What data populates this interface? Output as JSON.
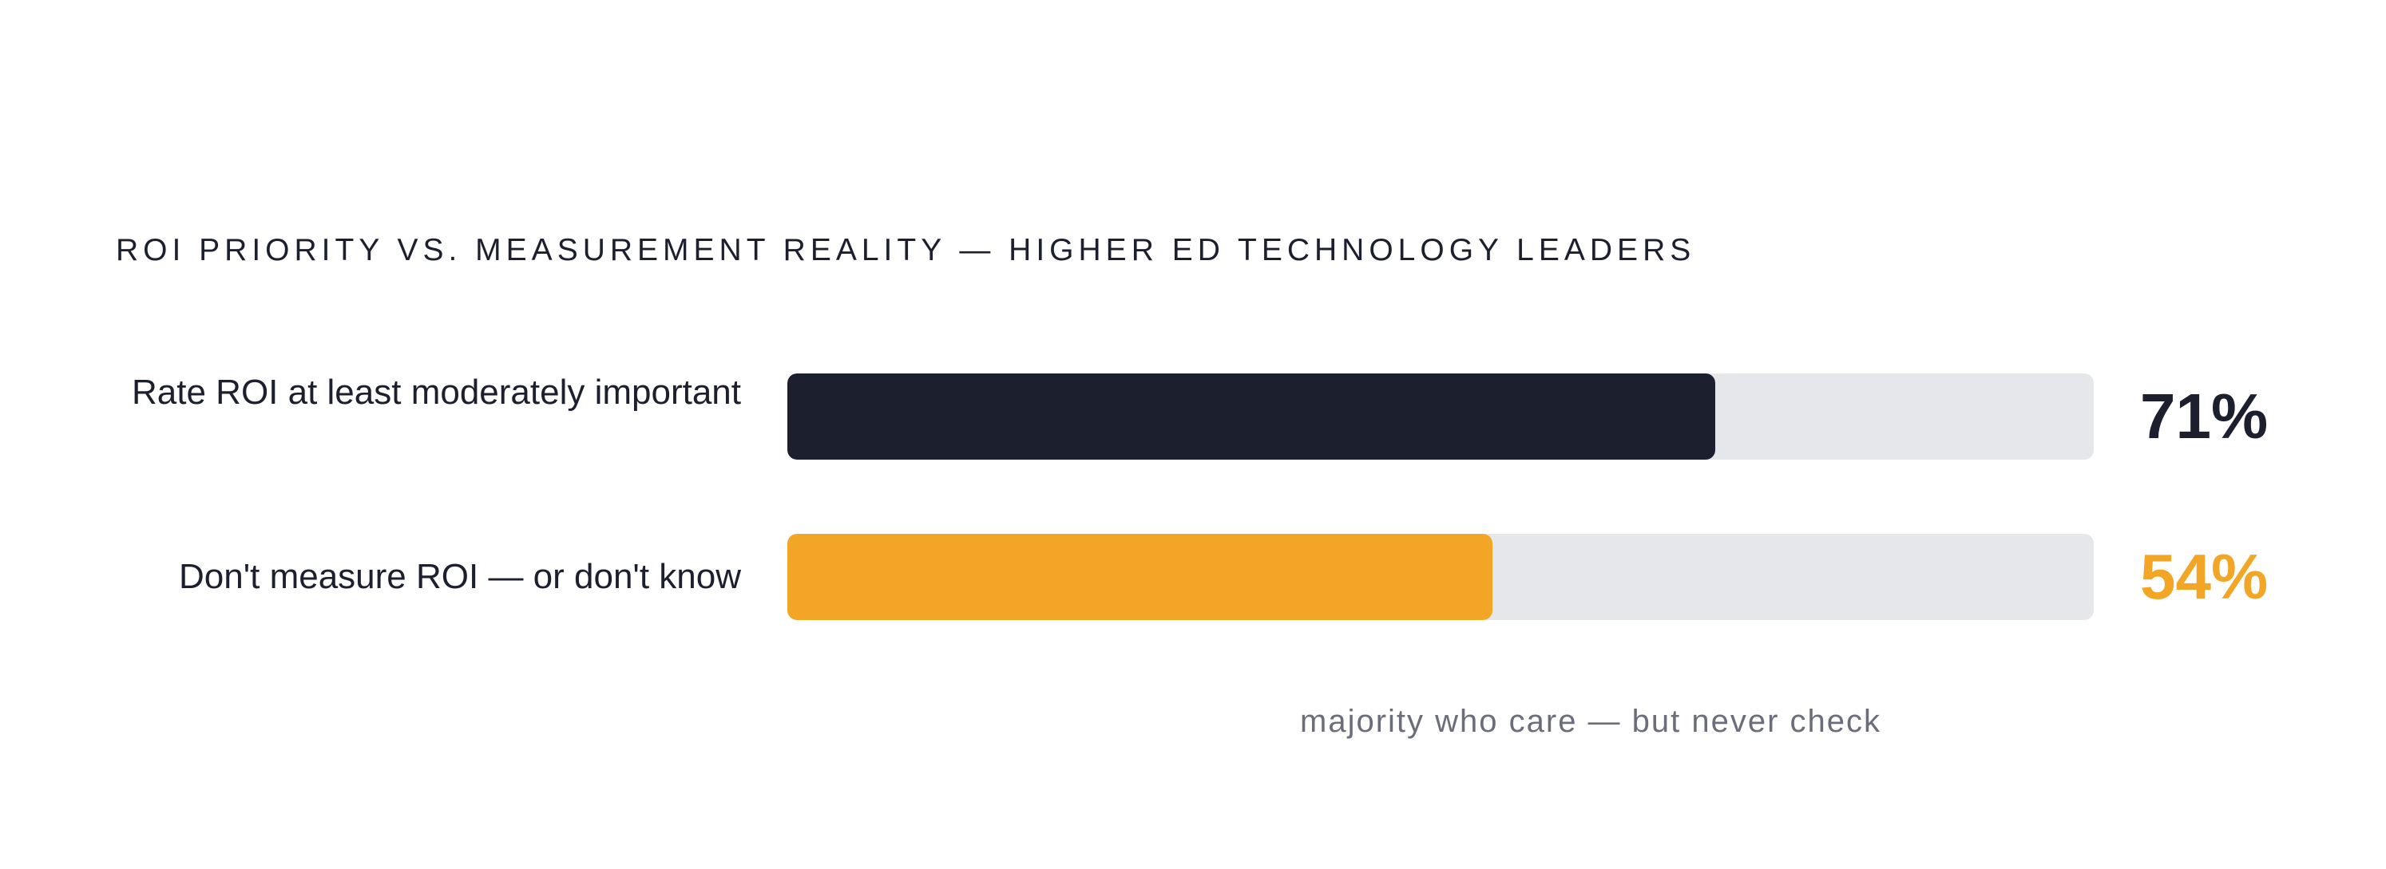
{
  "chart_data": {
    "type": "bar",
    "orientation": "horizontal",
    "title": "ROI PRIORITY VS. MEASUREMENT REALITY — HIGHER ED TECHNOLOGY LEADERS",
    "categories": [
      "Rate ROI at least moderately important",
      "Don't measure ROI — or don't know"
    ],
    "values": [
      71,
      54
    ],
    "value_labels": [
      "71%",
      "54%"
    ],
    "xlim": [
      0,
      100
    ],
    "colors": [
      "#1c1f2e",
      "#f3a626"
    ],
    "track_color": "#e6e7ea",
    "annotation": "majority who care — but never check",
    "grid": false,
    "legend": "none"
  }
}
